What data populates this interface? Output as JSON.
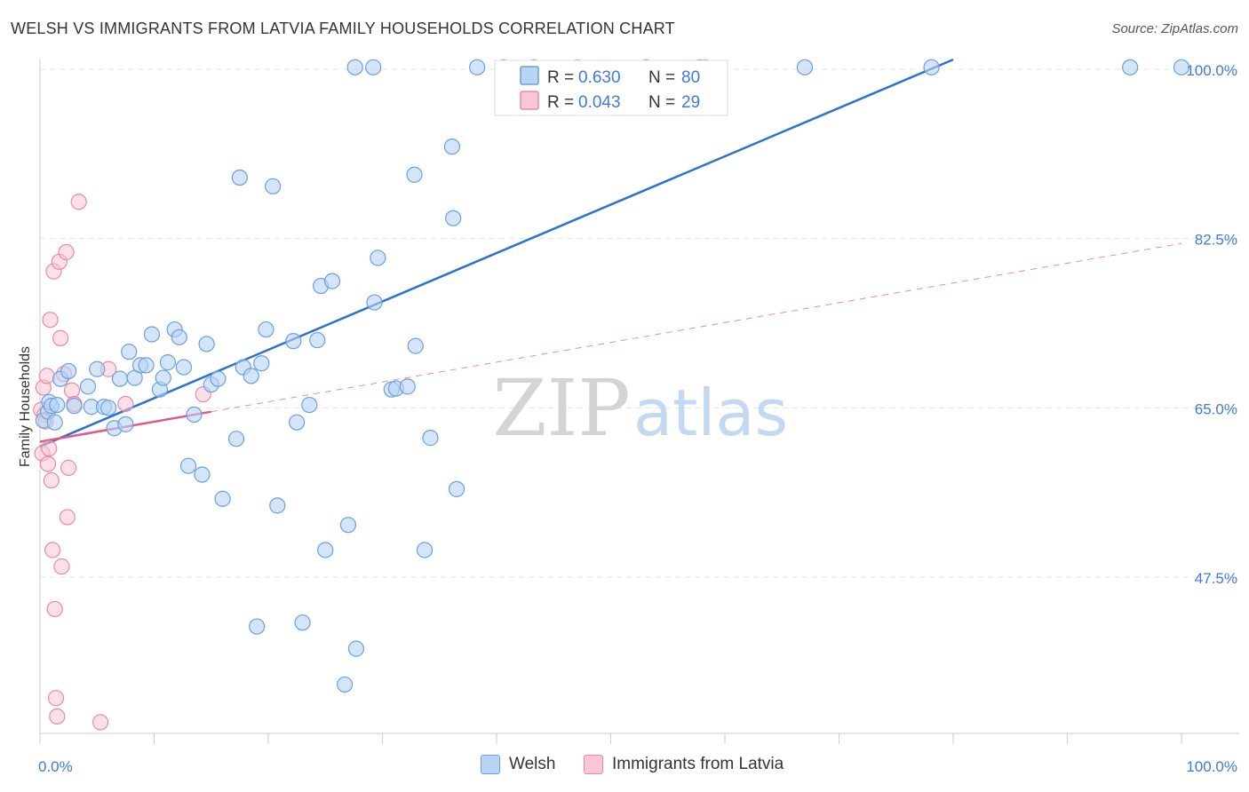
{
  "header": {
    "title": "WELSH VS IMMIGRANTS FROM LATVIA FAMILY HOUSEHOLDS CORRELATION CHART",
    "source": "Source: ZipAtlas.com"
  },
  "watermark": {
    "zip": "ZIP",
    "atlas": "atlas"
  },
  "colors": {
    "welsh_fill": "#b9d3f3",
    "welsh_stroke": "#6a9fe0",
    "welsh_line": "#2a72d0",
    "latvia_fill": "#f8c6d4",
    "latvia_stroke": "#e98aa7",
    "latvia_line": "#e0578a",
    "axis_label": "#3f7ad6"
  },
  "legend": {
    "rows": [
      {
        "r_label": "R = ",
        "r_value": "0.630",
        "n_label": "N = ",
        "n_value": "80"
      },
      {
        "r_label": "R = ",
        "r_value": "0.043",
        "n_label": "N = ",
        "n_value": "29"
      }
    ]
  },
  "bottom_legend": {
    "welsh": "Welsh",
    "latvia": "Immigrants from Latvia"
  },
  "chart_data": {
    "type": "scatter",
    "title": "WELSH VS IMMIGRANTS FROM LATVIA FAMILY HOUSEHOLDS CORRELATION CHART",
    "xlabel": "",
    "ylabel": "Family Households",
    "xlim": [
      0,
      100
    ],
    "ylim": [
      32.5,
      102
    ],
    "x_tick_labels": [
      "0.0%",
      "100.0%"
    ],
    "y_ticks": [
      47.5,
      65.0,
      82.5,
      100.0
    ],
    "y_tick_labels": [
      "47.5%",
      "65.0%",
      "82.5%",
      "100.0%"
    ],
    "grid": true,
    "legend_position": "top-center",
    "series": [
      {
        "name": "Welsh",
        "r": 0.63,
        "n": 80,
        "trend": {
          "x": [
            0,
            80
          ],
          "y": [
            61.0,
            101.0
          ],
          "style": "solid"
        },
        "points": [
          [
            0.3,
            63.7
          ],
          [
            0.7,
            64.6
          ],
          [
            0.8,
            65.6
          ],
          [
            1.0,
            65.2
          ],
          [
            1.3,
            63.5
          ],
          [
            1.5,
            65.3
          ],
          [
            1.8,
            68.0
          ],
          [
            2.5,
            68.8
          ],
          [
            3.0,
            65.2
          ],
          [
            4.2,
            67.2
          ],
          [
            4.5,
            65.1
          ],
          [
            5.0,
            69.0
          ],
          [
            5.6,
            65.1
          ],
          [
            6.0,
            65.0
          ],
          [
            6.5,
            62.9
          ],
          [
            7.0,
            68.0
          ],
          [
            7.5,
            63.3
          ],
          [
            7.8,
            70.8
          ],
          [
            8.3,
            68.1
          ],
          [
            8.8,
            69.4
          ],
          [
            9.3,
            69.4
          ],
          [
            9.8,
            72.6
          ],
          [
            10.5,
            66.9
          ],
          [
            10.8,
            68.1
          ],
          [
            11.2,
            69.7
          ],
          [
            11.8,
            73.1
          ],
          [
            12.2,
            72.3
          ],
          [
            12.6,
            69.2
          ],
          [
            13.0,
            59.0
          ],
          [
            13.5,
            64.3
          ],
          [
            14.2,
            58.1
          ],
          [
            14.6,
            71.6
          ],
          [
            15.0,
            67.4
          ],
          [
            15.6,
            68.0
          ],
          [
            16.0,
            55.6
          ],
          [
            17.2,
            61.8
          ],
          [
            17.5,
            88.8
          ],
          [
            17.8,
            69.2
          ],
          [
            18.5,
            68.3
          ],
          [
            19.0,
            42.4
          ],
          [
            19.4,
            69.6
          ],
          [
            19.8,
            73.1
          ],
          [
            20.4,
            87.9
          ],
          [
            20.8,
            54.9
          ],
          [
            22.2,
            71.9
          ],
          [
            22.5,
            63.5
          ],
          [
            23.0,
            42.8
          ],
          [
            23.6,
            65.3
          ],
          [
            24.3,
            72.0
          ],
          [
            24.6,
            77.6
          ],
          [
            25.0,
            50.3
          ],
          [
            25.6,
            78.1
          ],
          [
            26.7,
            36.4
          ],
          [
            27.0,
            52.9
          ],
          [
            27.6,
            100.2
          ],
          [
            27.7,
            40.1
          ],
          [
            29.2,
            100.2
          ],
          [
            29.3,
            75.9
          ],
          [
            29.6,
            80.5
          ],
          [
            30.8,
            66.9
          ],
          [
            31.2,
            67.0
          ],
          [
            32.2,
            67.2
          ],
          [
            32.8,
            89.1
          ],
          [
            32.9,
            71.4
          ],
          [
            33.7,
            50.3
          ],
          [
            34.2,
            61.9
          ],
          [
            36.1,
            92.0
          ],
          [
            36.2,
            84.6
          ],
          [
            36.5,
            56.6
          ],
          [
            38.3,
            100.2
          ],
          [
            40.6,
            100.2
          ],
          [
            43.3,
            100.2
          ],
          [
            47.1,
            100.2
          ],
          [
            53.1,
            100.2
          ],
          [
            57.8,
            100.2
          ],
          [
            58.3,
            100.2
          ],
          [
            67.0,
            100.2
          ],
          [
            78.1,
            100.2
          ],
          [
            95.5,
            100.2
          ],
          [
            100.0,
            100.2
          ]
        ]
      },
      {
        "name": "Immigrants from Latvia",
        "r": 0.043,
        "n": 29,
        "trend": {
          "x": [
            0,
            15
          ],
          "y": [
            61.5,
            64.6
          ],
          "style": "solid",
          "extended_x": [
            15,
            100
          ],
          "extended_y": [
            64.6,
            82.0
          ],
          "extended_style": "dashed"
        },
        "points": [
          [
            0.1,
            64.8
          ],
          [
            0.2,
            60.3
          ],
          [
            0.3,
            67.1
          ],
          [
            0.4,
            64.3
          ],
          [
            0.5,
            63.6
          ],
          [
            0.6,
            68.3
          ],
          [
            0.8,
            60.8
          ],
          [
            0.9,
            74.1
          ],
          [
            1.0,
            57.5
          ],
          [
            1.1,
            50.3
          ],
          [
            1.2,
            79.1
          ],
          [
            1.3,
            44.2
          ],
          [
            1.4,
            35.0
          ],
          [
            1.5,
            33.1
          ],
          [
            1.7,
            80.1
          ],
          [
            1.8,
            72.2
          ],
          [
            1.9,
            48.6
          ],
          [
            2.1,
            68.5
          ],
          [
            2.3,
            81.1
          ],
          [
            2.4,
            53.7
          ],
          [
            2.5,
            58.8
          ],
          [
            2.8,
            66.8
          ],
          [
            3.0,
            65.4
          ],
          [
            3.4,
            86.3
          ],
          [
            5.3,
            32.5
          ],
          [
            6.0,
            69.0
          ],
          [
            7.5,
            65.4
          ],
          [
            14.3,
            66.4
          ],
          [
            0.7,
            59.2
          ]
        ]
      }
    ]
  }
}
